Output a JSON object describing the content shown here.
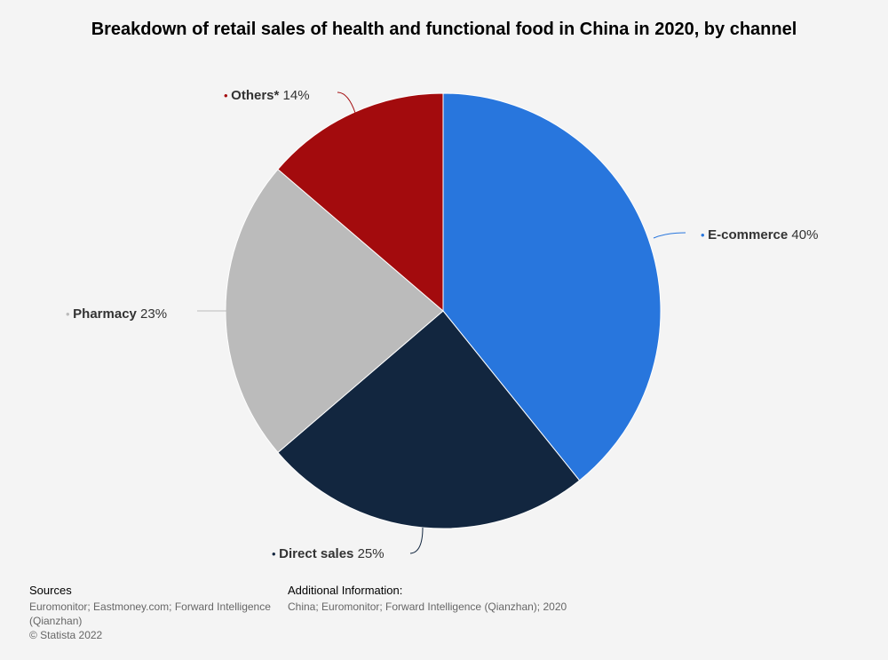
{
  "chart_data": {
    "type": "pie",
    "title": "Breakdown of retail sales of health and functional food in China in 2020, by channel",
    "slices": [
      {
        "name": "E-commerce",
        "value": 40,
        "label": "40%",
        "color": "#2876dd"
      },
      {
        "name": "Direct sales",
        "value": 25,
        "label": "25%",
        "color": "#12263f"
      },
      {
        "name": "Pharmacy",
        "value": 23,
        "label": "23%",
        "color": "#bbbbbb"
      },
      {
        "name": "Others*",
        "value": 14,
        "label": "14%",
        "color": "#a30b0d"
      }
    ],
    "legend": "none",
    "unit": "%"
  },
  "footer": {
    "sources_label": "Sources",
    "sources_text": "Euromonitor; Eastmoney.com; Forward Intelligence (Qianzhan)",
    "copyright": "© Statista 2022",
    "additional_label": "Additional Information:",
    "additional_text": "China; Euromonitor; Forward Intelligence (Qianzhan); 2020"
  }
}
